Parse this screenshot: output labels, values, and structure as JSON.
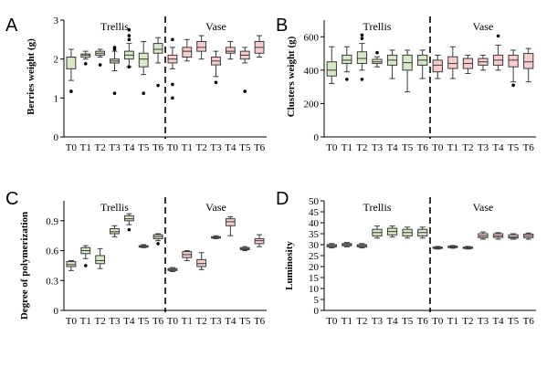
{
  "colors": {
    "trellis": "#d6e8c4",
    "vase": "#f8cccc",
    "stroke": "#3a3a3a"
  },
  "chart_data": [
    {
      "panel": "A",
      "type": "boxplot",
      "ylabel": "Berries weight (g)",
      "ylim": [
        0,
        3
      ],
      "yticks": [
        0,
        1,
        2,
        3
      ],
      "ytick_labels": [
        "0",
        "1",
        "2",
        "3"
      ],
      "categories": [
        "T0",
        "T1",
        "T2",
        "T3",
        "T4",
        "T5",
        "T6",
        "T0",
        "T1",
        "T2",
        "T3",
        "T4",
        "T5",
        "T6"
      ],
      "group_labels": [
        "Trellis",
        "Vase"
      ],
      "groups": [
        "trellis",
        "trellis",
        "trellis",
        "trellis",
        "trellis",
        "trellis",
        "trellis",
        "vase",
        "vase",
        "vase",
        "vase",
        "vase",
        "vase",
        "vase"
      ],
      "boxes": [
        {
          "whislo": 1.45,
          "q1": 1.75,
          "med": 2.05,
          "q3": 2.05,
          "whishi": 2.25,
          "fliers": [
            1.17
          ]
        },
        {
          "whislo": 2.0,
          "q1": 2.05,
          "med": 2.1,
          "q3": 2.13,
          "whishi": 2.2,
          "fliers": [
            1.88
          ]
        },
        {
          "whislo": 2.05,
          "q1": 2.1,
          "med": 2.15,
          "q3": 2.2,
          "whishi": 2.25,
          "fliers": [
            1.85
          ]
        },
        {
          "whislo": 1.7,
          "q1": 1.9,
          "med": 1.95,
          "q3": 2.0,
          "whishi": 2.2,
          "fliers": [
            2.25,
            2.3,
            1.12
          ]
        },
        {
          "whislo": 1.8,
          "q1": 2.0,
          "med": 2.1,
          "q3": 2.2,
          "whishi": 2.4,
          "fliers": [
            2.5,
            2.6,
            2.75,
            1.8
          ]
        },
        {
          "whislo": 1.6,
          "q1": 1.8,
          "med": 2.0,
          "q3": 2.15,
          "whishi": 2.45,
          "fliers": [
            1.12
          ]
        },
        {
          "whislo": 1.9,
          "q1": 2.15,
          "med": 2.25,
          "q3": 2.4,
          "whishi": 2.55,
          "fliers": [
            1.32
          ]
        },
        {
          "whislo": 1.75,
          "q1": 1.9,
          "med": 2.0,
          "q3": 2.1,
          "whishi": 2.3,
          "fliers": [
            1.0,
            1.35,
            2.5
          ]
        },
        {
          "whislo": 1.95,
          "q1": 2.05,
          "med": 2.2,
          "q3": 2.3,
          "whishi": 2.5,
          "fliers": []
        },
        {
          "whislo": 2.0,
          "q1": 2.2,
          "med": 2.3,
          "q3": 2.45,
          "whishi": 2.6,
          "fliers": []
        },
        {
          "whislo": 1.55,
          "q1": 1.85,
          "med": 1.95,
          "q3": 2.05,
          "whishi": 2.2,
          "fliers": [
            1.4
          ]
        },
        {
          "whislo": 2.0,
          "q1": 2.15,
          "med": 2.2,
          "q3": 2.3,
          "whishi": 2.45,
          "fliers": []
        },
        {
          "whislo": 1.9,
          "q1": 2.0,
          "med": 2.1,
          "q3": 2.2,
          "whishi": 2.3,
          "fliers": [
            1.17
          ]
        },
        {
          "whislo": 2.05,
          "q1": 2.15,
          "med": 2.3,
          "q3": 2.45,
          "whishi": 2.6,
          "fliers": []
        }
      ]
    },
    {
      "panel": "B",
      "type": "boxplot",
      "ylabel": "Clusters weight (g)",
      "ylim": [
        0,
        700
      ],
      "yticks": [
        0,
        200,
        400,
        600
      ],
      "ytick_labels": [
        "0",
        "200",
        "400",
        "600"
      ],
      "categories": [
        "T0",
        "T1",
        "T2",
        "T3",
        "T4",
        "T5",
        "T6",
        "T0",
        "T1",
        "T2",
        "T3",
        "T4",
        "T5",
        "T6"
      ],
      "group_labels": [
        "Trellis",
        "Vase"
      ],
      "groups": [
        "trellis",
        "trellis",
        "trellis",
        "trellis",
        "trellis",
        "trellis",
        "trellis",
        "vase",
        "vase",
        "vase",
        "vase",
        "vase",
        "vase",
        "vase"
      ],
      "boxes": [
        {
          "whislo": 320,
          "q1": 365,
          "med": 400,
          "q3": 450,
          "whishi": 540,
          "fliers": []
        },
        {
          "whislo": 390,
          "q1": 440,
          "med": 460,
          "q3": 490,
          "whishi": 540,
          "fliers": [
            345
          ]
        },
        {
          "whislo": 400,
          "q1": 440,
          "med": 470,
          "q3": 510,
          "whishi": 560,
          "fliers": [
            610,
            590,
            345
          ]
        },
        {
          "whislo": 420,
          "q1": 440,
          "med": 450,
          "q3": 465,
          "whishi": 480,
          "fliers": [
            505
          ]
        },
        {
          "whislo": 350,
          "q1": 430,
          "med": 460,
          "q3": 490,
          "whishi": 520,
          "fliers": []
        },
        {
          "whislo": 270,
          "q1": 400,
          "med": 445,
          "q3": 490,
          "whishi": 520,
          "fliers": []
        },
        {
          "whislo": 350,
          "q1": 430,
          "med": 460,
          "q3": 490,
          "whishi": 520,
          "fliers": []
        },
        {
          "whislo": 350,
          "q1": 390,
          "med": 430,
          "q3": 460,
          "whishi": 490,
          "fliers": []
        },
        {
          "whislo": 350,
          "q1": 410,
          "med": 440,
          "q3": 480,
          "whishi": 540,
          "fliers": []
        },
        {
          "whislo": 380,
          "q1": 410,
          "med": 440,
          "q3": 470,
          "whishi": 490,
          "fliers": []
        },
        {
          "whislo": 400,
          "q1": 430,
          "med": 450,
          "q3": 470,
          "whishi": 490,
          "fliers": []
        },
        {
          "whislo": 400,
          "q1": 430,
          "med": 460,
          "q3": 490,
          "whishi": 550,
          "fliers": [
            605
          ]
        },
        {
          "whislo": 330,
          "q1": 420,
          "med": 460,
          "q3": 490,
          "whishi": 520,
          "fliers": [
            310
          ]
        },
        {
          "whislo": 330,
          "q1": 410,
          "med": 450,
          "q3": 500,
          "whishi": 530,
          "fliers": []
        }
      ]
    },
    {
      "panel": "C",
      "type": "boxplot",
      "ylabel": "Degree of polymerization",
      "ylim": [
        0,
        1.1
      ],
      "yticks": [
        0,
        0.3,
        0.6,
        0.9
      ],
      "ytick_labels": [
        "0",
        "0.3",
        "0.6",
        "0.9"
      ],
      "categories": [
        "T0",
        "T1",
        "T2",
        "T3",
        "T4",
        "T5",
        "T6",
        "T0",
        "T1",
        "T2",
        "T3",
        "T4",
        "T5",
        "T6"
      ],
      "group_labels": [
        "Trellis",
        "Vase"
      ],
      "groups": [
        "trellis",
        "trellis",
        "trellis",
        "trellis",
        "trellis",
        "trellis",
        "trellis",
        "vase",
        "vase",
        "vase",
        "vase",
        "vase",
        "vase",
        "vase"
      ],
      "boxes": [
        {
          "whislo": 0.4,
          "q1": 0.44,
          "med": 0.46,
          "q3": 0.49,
          "whishi": 0.5,
          "fliers": []
        },
        {
          "whislo": 0.52,
          "q1": 0.57,
          "med": 0.6,
          "q3": 0.63,
          "whishi": 0.65,
          "fliers": [
            0.45
          ]
        },
        {
          "whislo": 0.42,
          "q1": 0.47,
          "med": 0.5,
          "q3": 0.55,
          "whishi": 0.62,
          "fliers": []
        },
        {
          "whislo": 0.74,
          "q1": 0.77,
          "med": 0.79,
          "q3": 0.82,
          "whishi": 0.85,
          "fliers": []
        },
        {
          "whislo": 0.86,
          "q1": 0.9,
          "med": 0.92,
          "q3": 0.95,
          "whishi": 0.97,
          "fliers": [
            0.81
          ]
        },
        {
          "whislo": 0.63,
          "q1": 0.635,
          "med": 0.64,
          "q3": 0.65,
          "whishi": 0.66,
          "fliers": []
        },
        {
          "whislo": 0.7,
          "q1": 0.72,
          "med": 0.74,
          "q3": 0.76,
          "whishi": 0.77,
          "fliers": [
            0.67
          ]
        },
        {
          "whislo": 0.39,
          "q1": 0.4,
          "med": 0.41,
          "q3": 0.42,
          "whishi": 0.43,
          "fliers": []
        },
        {
          "whislo": 0.5,
          "q1": 0.53,
          "med": 0.56,
          "q3": 0.59,
          "whishi": 0.6,
          "fliers": []
        },
        {
          "whislo": 0.41,
          "q1": 0.44,
          "med": 0.47,
          "q3": 0.51,
          "whishi": 0.58,
          "fliers": []
        },
        {
          "whislo": 0.72,
          "q1": 0.73,
          "med": 0.735,
          "q3": 0.74,
          "whishi": 0.75,
          "fliers": []
        },
        {
          "whislo": 0.75,
          "q1": 0.85,
          "med": 0.89,
          "q3": 0.92,
          "whishi": 0.94,
          "fliers": []
        },
        {
          "whislo": 0.6,
          "q1": 0.61,
          "med": 0.62,
          "q3": 0.63,
          "whishi": 0.64,
          "fliers": []
        },
        {
          "whislo": 0.64,
          "q1": 0.67,
          "med": 0.7,
          "q3": 0.72,
          "whishi": 0.76,
          "fliers": []
        }
      ]
    },
    {
      "panel": "D",
      "type": "boxplot",
      "ylabel": "Luminosity",
      "ylim": [
        0,
        50
      ],
      "yticks": [
        0,
        5,
        10,
        15,
        20,
        25,
        30,
        35,
        40,
        45,
        50
      ],
      "ytick_labels": [
        "0",
        "5",
        "10",
        "15",
        "20",
        "25",
        "30",
        "35",
        "40",
        "45",
        "50"
      ],
      "categories": [
        "T0",
        "T1",
        "T2",
        "T3",
        "T4",
        "T5",
        "T6",
        "T0",
        "T1",
        "T2",
        "T3",
        "T4",
        "T5",
        "T6"
      ],
      "group_labels": [
        "Trellis",
        "Vase"
      ],
      "groups": [
        "trellis",
        "trellis",
        "trellis",
        "trellis",
        "trellis",
        "trellis",
        "trellis",
        "vase",
        "vase",
        "vase",
        "vase",
        "vase",
        "vase",
        "vase"
      ],
      "boxes": [
        {
          "whislo": 28.5,
          "q1": 29.0,
          "med": 29.5,
          "q3": 30.0,
          "whishi": 30.5,
          "fliers": []
        },
        {
          "whislo": 29.0,
          "q1": 29.5,
          "med": 30.0,
          "q3": 30.5,
          "whishi": 31.0,
          "fliers": []
        },
        {
          "whislo": 28.5,
          "q1": 29.0,
          "med": 29.5,
          "q3": 30.0,
          "whishi": 30.5,
          "fliers": []
        },
        {
          "whislo": 33.0,
          "q1": 34.0,
          "med": 35.5,
          "q3": 37.0,
          "whishi": 38.5,
          "fliers": []
        },
        {
          "whislo": 33.5,
          "q1": 34.5,
          "med": 36.0,
          "q3": 37.5,
          "whishi": 38.5,
          "fliers": []
        },
        {
          "whislo": 33.0,
          "q1": 34.0,
          "med": 35.5,
          "q3": 37.0,
          "whishi": 38.0,
          "fliers": []
        },
        {
          "whislo": 33.0,
          "q1": 34.0,
          "med": 35.5,
          "q3": 37.0,
          "whishi": 38.0,
          "fliers": []
        },
        {
          "whislo": 28.0,
          "q1": 28.3,
          "med": 28.6,
          "q3": 28.9,
          "whishi": 29.2,
          "fliers": []
        },
        {
          "whislo": 28.4,
          "q1": 28.7,
          "med": 29.0,
          "q3": 29.3,
          "whishi": 29.6,
          "fliers": []
        },
        {
          "whislo": 28.0,
          "q1": 28.3,
          "med": 28.6,
          "q3": 28.9,
          "whishi": 29.2,
          "fliers": []
        },
        {
          "whislo": 32.5,
          "q1": 33.2,
          "med": 34.0,
          "q3": 35.0,
          "whishi": 35.8,
          "fliers": []
        },
        {
          "whislo": 32.5,
          "q1": 33.3,
          "med": 34.0,
          "q3": 35.0,
          "whishi": 35.5,
          "fliers": []
        },
        {
          "whislo": 32.5,
          "q1": 33.0,
          "med": 33.5,
          "q3": 34.5,
          "whishi": 35.0,
          "fliers": []
        },
        {
          "whislo": 32.5,
          "q1": 33.2,
          "med": 34.0,
          "q3": 34.8,
          "whishi": 35.3,
          "fliers": []
        }
      ]
    }
  ]
}
